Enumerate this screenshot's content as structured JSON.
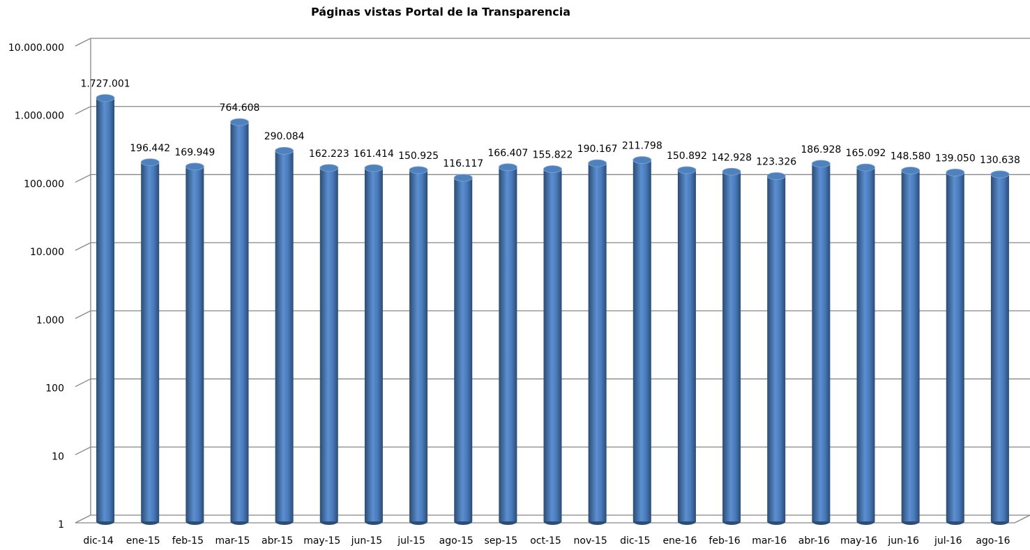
{
  "chart_data": {
    "type": "bar",
    "title": "Páginas vistas Portal de la Transparencia",
    "categories": [
      "dic-14",
      "ene-15",
      "feb-15",
      "mar-15",
      "abr-15",
      "may-15",
      "jun-15",
      "jul-15",
      "ago-15",
      "sep-15",
      "oct-15",
      "nov-15",
      "dic-15",
      "ene-16",
      "feb-16",
      "mar-16",
      "abr-16",
      "may-16",
      "jun-16",
      "jul-16",
      "ago-16"
    ],
    "values": [
      1727001,
      196442,
      169949,
      764608,
      290084,
      162223,
      161414,
      150925,
      116117,
      166407,
      155822,
      190167,
      211798,
      150892,
      142928,
      123326,
      186928,
      165092,
      148580,
      139050,
      130638
    ],
    "value_labels": [
      "1.727.001",
      "196.442",
      "169.949",
      "764.608",
      "290.084",
      "162.223",
      "161.414",
      "150.925",
      "116.117",
      "166.407",
      "155.822",
      "190.167",
      "211.798",
      "150.892",
      "142.928",
      "123.326",
      "186.928",
      "165.092",
      "148.580",
      "139.050",
      "130.638"
    ],
    "color": "#4f81bd",
    "log": true,
    "ylim": [
      1,
      10000000
    ],
    "yticks": [
      1,
      10,
      100,
      {
        "value": 1000,
        "label": "1.000"
      },
      {
        "value": 10000,
        "label": "10.000"
      },
      {
        "value": 100000,
        "label": "100.000"
      },
      {
        "value": 1000000,
        "label": "1.000.000"
      },
      {
        "value": 10000000,
        "label": "10.000.000"
      }
    ],
    "grid": true
  }
}
